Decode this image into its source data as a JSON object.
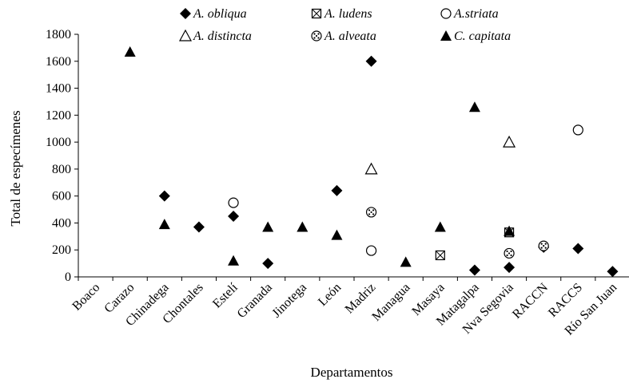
{
  "chart_data": {
    "type": "scatter",
    "title": "",
    "xlabel": "Departamentos",
    "ylabel": "Total de especímenes",
    "ylim": [
      0,
      1800
    ],
    "yticks": [
      0,
      200,
      400,
      600,
      800,
      1000,
      1200,
      1400,
      1600,
      1800
    ],
    "categories": [
      "Boaco",
      "Carazo",
      "Chinadega",
      "Chontales",
      "Estelí",
      "Granada",
      "Jinotega",
      "León",
      "Madriz",
      "Managua",
      "Masaya",
      "Matagalpa",
      "Nva Segovia",
      "RACCN",
      "RACCS",
      "Río San Juan"
    ],
    "grid": false,
    "legend_position": "top",
    "series": [
      {
        "name": "A. obliqua",
        "marker": "diamond",
        "color": "#000000",
        "points": [
          {
            "x": "Chinadega",
            "y": 600
          },
          {
            "x": "Chontales",
            "y": 370
          },
          {
            "x": "Estelí",
            "y": 450
          },
          {
            "x": "Granada",
            "y": 100
          },
          {
            "x": "León",
            "y": 640
          },
          {
            "x": "Madriz",
            "y": 1600
          },
          {
            "x": "Matagalpa",
            "y": 50
          },
          {
            "x": "Nva Segovia",
            "y": 70
          },
          {
            "x": "RACCN",
            "y": 220
          },
          {
            "x": "RACCS",
            "y": 210
          },
          {
            "x": "Río San Juan",
            "y": 40
          }
        ]
      },
      {
        "name": "A. ludens",
        "marker": "square-x",
        "color": "#000000",
        "points": [
          {
            "x": "Masaya",
            "y": 160
          },
          {
            "x": "Nva Segovia",
            "y": 330
          }
        ]
      },
      {
        "name": "A.striata",
        "marker": "circle-open",
        "color": "#000000",
        "points": [
          {
            "x": "Estelí",
            "y": 550
          },
          {
            "x": "Madriz",
            "y": 195
          },
          {
            "x": "RACCS",
            "y": 1090
          }
        ]
      },
      {
        "name": "A. distincta",
        "marker": "triangle-open",
        "color": "#000000",
        "points": [
          {
            "x": "Madriz",
            "y": 800
          },
          {
            "x": "Nva Segovia",
            "y": 1000
          }
        ]
      },
      {
        "name": "A. alveata",
        "marker": "circle-dotted",
        "color": "#000000",
        "points": [
          {
            "x": "Madriz",
            "y": 480
          },
          {
            "x": "Nva Segovia",
            "y": 175
          },
          {
            "x": "RACCN",
            "y": 230
          }
        ]
      },
      {
        "name": "C. capitata",
        "marker": "triangle",
        "color": "#000000",
        "points": [
          {
            "x": "Carazo",
            "y": 1670
          },
          {
            "x": "Chinadega",
            "y": 390
          },
          {
            "x": "Estelí",
            "y": 120
          },
          {
            "x": "Granada",
            "y": 370
          },
          {
            "x": "Jinotega",
            "y": 370
          },
          {
            "x": "León",
            "y": 310
          },
          {
            "x": "Managua",
            "y": 110
          },
          {
            "x": "Masaya",
            "y": 370
          },
          {
            "x": "Matagalpa",
            "y": 1260
          },
          {
            "x": "Nva Segovia",
            "y": 340
          }
        ]
      }
    ]
  }
}
